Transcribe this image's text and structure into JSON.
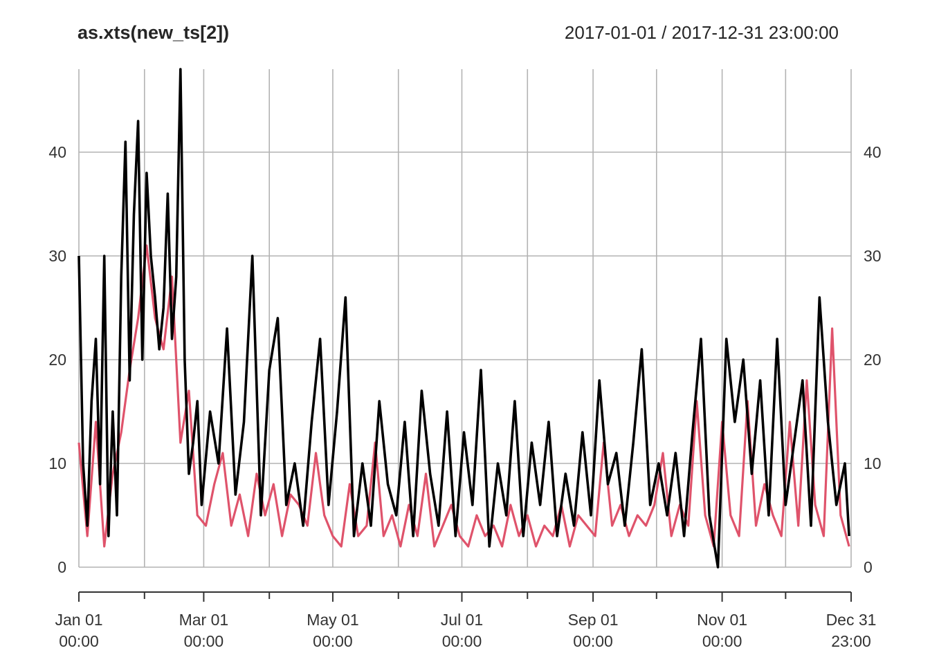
{
  "chart_data": {
    "type": "line",
    "title": "as.xts(new_ts[2])",
    "date_range_label": "2017-01-01 / 2017-12-31 23:00:00",
    "x_start": "2017-01-01 00:00",
    "x_end": "2017-12-31 23:00",
    "ylim": [
      0,
      48
    ],
    "y_ticks": [
      0,
      10,
      20,
      30,
      40
    ],
    "y_tick_labels": [
      "0",
      "10",
      "20",
      "30",
      "40"
    ],
    "x_tick_labels": [
      {
        "date": "2017-01-01 00:00",
        "line1": "Jan 01",
        "line2": "00:00"
      },
      {
        "date": "2017-03-01 00:00",
        "line1": "Mar 01",
        "line2": "00:00"
      },
      {
        "date": "2017-05-01 00:00",
        "line1": "May 01",
        "line2": "00:00"
      },
      {
        "date": "2017-07-01 00:00",
        "line1": "Jul 01",
        "line2": "00:00"
      },
      {
        "date": "2017-09-01 00:00",
        "line1": "Sep 01",
        "line2": "00:00"
      },
      {
        "date": "2017-11-01 00:00",
        "line1": "Nov 01",
        "line2": "00:00"
      },
      {
        "date": "2017-12-31 23:00",
        "line1": "Dec 31",
        "line2": "23:00"
      }
    ],
    "minor_ticks": [
      "2017-02-01",
      "2017-04-01",
      "2017-06-01",
      "2017-08-01",
      "2017-10-01",
      "2017-12-01"
    ],
    "grid": true,
    "series": [
      {
        "color": "#DF536B",
        "x": [
          "2017-01-01",
          "2017-01-05",
          "2017-01-09",
          "2017-01-13",
          "2017-01-17",
          "2017-01-21",
          "2017-01-25",
          "2017-01-29",
          "2017-02-02",
          "2017-02-06",
          "2017-02-10",
          "2017-02-14",
          "2017-02-18",
          "2017-02-22",
          "2017-02-26",
          "2017-03-02",
          "2017-03-06",
          "2017-03-10",
          "2017-03-14",
          "2017-03-18",
          "2017-03-22",
          "2017-03-26",
          "2017-03-30",
          "2017-04-03",
          "2017-04-07",
          "2017-04-11",
          "2017-04-15",
          "2017-04-19",
          "2017-04-23",
          "2017-04-27",
          "2017-05-01",
          "2017-05-05",
          "2017-05-09",
          "2017-05-13",
          "2017-05-17",
          "2017-05-21",
          "2017-05-25",
          "2017-05-29",
          "2017-06-02",
          "2017-06-06",
          "2017-06-10",
          "2017-06-14",
          "2017-06-18",
          "2017-06-22",
          "2017-06-26",
          "2017-06-30",
          "2017-07-04",
          "2017-07-08",
          "2017-07-12",
          "2017-07-16",
          "2017-07-20",
          "2017-07-24",
          "2017-07-28",
          "2017-08-01",
          "2017-08-05",
          "2017-08-09",
          "2017-08-13",
          "2017-08-17",
          "2017-08-21",
          "2017-08-25",
          "2017-08-29",
          "2017-09-02",
          "2017-09-06",
          "2017-09-10",
          "2017-09-14",
          "2017-09-18",
          "2017-09-22",
          "2017-09-26",
          "2017-09-30",
          "2017-10-04",
          "2017-10-08",
          "2017-10-12",
          "2017-10-16",
          "2017-10-20",
          "2017-10-24",
          "2017-10-28",
          "2017-11-01",
          "2017-11-05",
          "2017-11-09",
          "2017-11-13",
          "2017-11-17",
          "2017-11-21",
          "2017-11-25",
          "2017-11-29",
          "2017-12-03",
          "2017-12-07",
          "2017-12-11",
          "2017-12-15",
          "2017-12-19",
          "2017-12-23",
          "2017-12-27",
          "2017-12-31"
        ],
        "y": [
          12,
          3,
          14,
          2,
          9,
          13,
          19,
          24,
          31,
          24,
          21,
          28,
          12,
          17,
          5,
          4,
          8,
          11,
          4,
          7,
          3,
          9,
          5,
          8,
          3,
          7,
          6,
          4,
          11,
          5,
          3,
          2,
          8,
          3,
          4,
          12,
          3,
          5,
          2,
          6,
          3,
          9,
          2,
          4,
          6,
          3,
          2,
          5,
          3,
          4,
          2,
          6,
          3,
          5,
          2,
          4,
          3,
          6,
          2,
          5,
          4,
          3,
          12,
          4,
          6,
          3,
          5,
          4,
          6,
          11,
          3,
          6,
          4,
          16,
          5,
          2,
          14,
          5,
          3,
          16,
          4,
          8,
          5,
          3,
          14,
          4,
          18,
          6,
          3,
          23,
          5,
          2
        ]
      },
      {
        "color": "#000000",
        "x": [
          "2017-01-01",
          "2017-01-03",
          "2017-01-05",
          "2017-01-07",
          "2017-01-09",
          "2017-01-11",
          "2017-01-13",
          "2017-01-15",
          "2017-01-17",
          "2017-01-19",
          "2017-01-21",
          "2017-01-23",
          "2017-01-25",
          "2017-01-27",
          "2017-01-29",
          "2017-01-31",
          "2017-02-02",
          "2017-02-04",
          "2017-02-06",
          "2017-02-08",
          "2017-02-10",
          "2017-02-12",
          "2017-02-14",
          "2017-02-16",
          "2017-02-18",
          "2017-02-20",
          "2017-02-22",
          "2017-02-24",
          "2017-02-26",
          "2017-02-28",
          "2017-03-04",
          "2017-03-08",
          "2017-03-12",
          "2017-03-16",
          "2017-03-20",
          "2017-03-24",
          "2017-03-28",
          "2017-04-01",
          "2017-04-05",
          "2017-04-09",
          "2017-04-13",
          "2017-04-17",
          "2017-04-21",
          "2017-04-25",
          "2017-04-29",
          "2017-05-03",
          "2017-05-07",
          "2017-05-11",
          "2017-05-15",
          "2017-05-19",
          "2017-05-23",
          "2017-05-27",
          "2017-05-31",
          "2017-06-04",
          "2017-06-08",
          "2017-06-12",
          "2017-06-16",
          "2017-06-20",
          "2017-06-24",
          "2017-06-28",
          "2017-07-02",
          "2017-07-06",
          "2017-07-10",
          "2017-07-14",
          "2017-07-18",
          "2017-07-22",
          "2017-07-26",
          "2017-07-30",
          "2017-08-03",
          "2017-08-07",
          "2017-08-11",
          "2017-08-15",
          "2017-08-19",
          "2017-08-23",
          "2017-08-27",
          "2017-08-31",
          "2017-09-04",
          "2017-09-08",
          "2017-09-12",
          "2017-09-16",
          "2017-09-20",
          "2017-09-24",
          "2017-09-28",
          "2017-10-02",
          "2017-10-06",
          "2017-10-10",
          "2017-10-14",
          "2017-10-18",
          "2017-10-22",
          "2017-10-26",
          "2017-10-30",
          "2017-11-03",
          "2017-11-07",
          "2017-11-11",
          "2017-11-15",
          "2017-11-19",
          "2017-11-23",
          "2017-11-27",
          "2017-12-01",
          "2017-12-05",
          "2017-12-09",
          "2017-12-13",
          "2017-12-17",
          "2017-12-21",
          "2017-12-25",
          "2017-12-29",
          "2017-12-31"
        ],
        "y": [
          30,
          10,
          4,
          16,
          22,
          8,
          30,
          3,
          15,
          5,
          28,
          41,
          18,
          34,
          43,
          20,
          38,
          30,
          26,
          21,
          25,
          36,
          22,
          28,
          48,
          20,
          9,
          12,
          16,
          6,
          15,
          10,
          23,
          7,
          14,
          30,
          5,
          19,
          24,
          6,
          10,
          4,
          14,
          22,
          6,
          15,
          26,
          3,
          10,
          4,
          16,
          8,
          5,
          14,
          3,
          17,
          9,
          4,
          15,
          3,
          13,
          6,
          19,
          2,
          10,
          5,
          16,
          3,
          12,
          6,
          14,
          3,
          9,
          4,
          13,
          5,
          18,
          8,
          11,
          4,
          12,
          21,
          6,
          10,
          5,
          11,
          3,
          13,
          22,
          5,
          0,
          22,
          14,
          20,
          9,
          18,
          5,
          22,
          6,
          12,
          18,
          4,
          26,
          14,
          6,
          10,
          3
        ]
      }
    ]
  }
}
